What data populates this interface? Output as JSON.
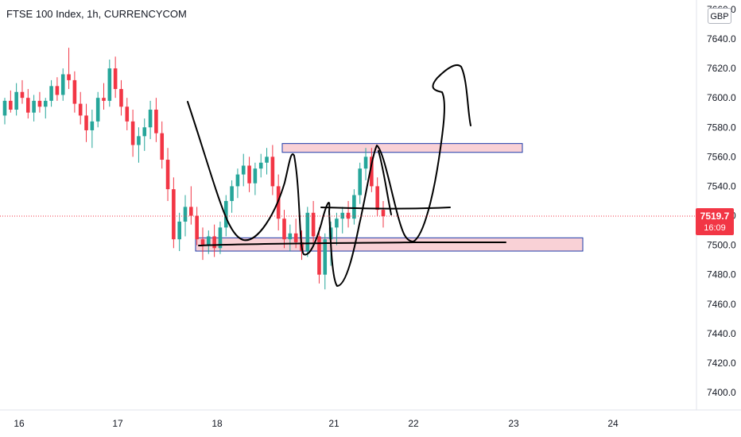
{
  "header": {
    "title": "FTSE 100 Index, 1h, CURRENCYCOM",
    "currency": "GBP"
  },
  "price_tag": {
    "price": "7519.7",
    "countdown": "16:09"
  },
  "colors": {
    "up": "#26a69a",
    "down": "#f23645",
    "drawing": "#000000",
    "zone_fill": "#f8c9cf",
    "zone_border": "#1c3aa9",
    "axis_text": "#131722",
    "current_line": "#f23645"
  },
  "chart_data": {
    "type": "candlestick",
    "title": "FTSE 100 Index, 1h, CURRENCYCOM",
    "y_axis": {
      "ticks": [
        "7640.0",
        "7620.0",
        "7600.0",
        "7580.0",
        "7560.0",
        "7540.0",
        "7520.0",
        "7500.0",
        "7480.0",
        "7460.0",
        "7440.0",
        "7420.0",
        "7400.0"
      ],
      "top_partial_tick": "7660.0",
      "range": [
        7388,
        7662
      ],
      "position": "right"
    },
    "x_axis": {
      "ticks": [
        "16",
        "17",
        "18",
        "21",
        "22",
        "23",
        "24"
      ]
    },
    "current_price": 7519.7,
    "current_price_line": "dotted",
    "candles": [
      [
        7588,
        7600,
        7582,
        7598
      ],
      [
        7598,
        7605,
        7590,
        7592
      ],
      [
        7592,
        7610,
        7588,
        7604
      ],
      [
        7604,
        7612,
        7596,
        7600
      ],
      [
        7600,
        7606,
        7586,
        7590
      ],
      [
        7590,
        7602,
        7584,
        7598
      ],
      [
        7598,
        7604,
        7590,
        7594
      ],
      [
        7594,
        7600,
        7586,
        7598
      ],
      [
        7598,
        7612,
        7594,
        7608
      ],
      [
        7608,
        7614,
        7598,
        7602
      ],
      [
        7602,
        7620,
        7598,
        7616
      ],
      [
        7616,
        7634,
        7606,
        7612
      ],
      [
        7612,
        7618,
        7590,
        7596
      ],
      [
        7596,
        7604,
        7582,
        7588
      ],
      [
        7588,
        7596,
        7570,
        7578
      ],
      [
        7578,
        7592,
        7566,
        7584
      ],
      [
        7584,
        7604,
        7580,
        7600
      ],
      [
        7600,
        7610,
        7592,
        7598
      ],
      [
        7598,
        7626,
        7594,
        7620
      ],
      [
        7620,
        7628,
        7600,
        7606
      ],
      [
        7606,
        7612,
        7588,
        7594
      ],
      [
        7594,
        7600,
        7578,
        7584
      ],
      [
        7584,
        7592,
        7560,
        7568
      ],
      [
        7568,
        7580,
        7556,
        7574
      ],
      [
        7574,
        7586,
        7564,
        7580
      ],
      [
        7580,
        7598,
        7572,
        7592
      ],
      [
        7592,
        7600,
        7570,
        7576
      ],
      [
        7576,
        7584,
        7552,
        7558
      ],
      [
        7558,
        7566,
        7530,
        7538
      ],
      [
        7538,
        7546,
        7498,
        7504
      ],
      [
        7504,
        7522,
        7496,
        7516
      ],
      [
        7516,
        7534,
        7506,
        7526
      ],
      [
        7526,
        7540,
        7514,
        7520
      ],
      [
        7520,
        7526,
        7500,
        7504
      ],
      [
        7504,
        7512,
        7490,
        7500
      ],
      [
        7500,
        7510,
        7494,
        7506
      ],
      [
        7506,
        7514,
        7492,
        7498
      ],
      [
        7498,
        7516,
        7494,
        7512
      ],
      [
        7512,
        7534,
        7506,
        7530
      ],
      [
        7530,
        7544,
        7522,
        7540
      ],
      [
        7540,
        7552,
        7532,
        7548
      ],
      [
        7548,
        7562,
        7540,
        7554
      ],
      [
        7554,
        7560,
        7536,
        7542
      ],
      [
        7542,
        7556,
        7534,
        7552
      ],
      [
        7552,
        7562,
        7546,
        7556
      ],
      [
        7556,
        7566,
        7548,
        7560
      ],
      [
        7560,
        7568,
        7534,
        7540
      ],
      [
        7540,
        7548,
        7510,
        7518
      ],
      [
        7518,
        7524,
        7498,
        7504
      ],
      [
        7504,
        7514,
        7496,
        7508
      ],
      [
        7508,
        7518,
        7498,
        7502
      ],
      [
        7502,
        7510,
        7490,
        7496
      ],
      [
        7496,
        7526,
        7492,
        7522
      ],
      [
        7522,
        7530,
        7500,
        7506
      ],
      [
        7506,
        7512,
        7474,
        7480
      ],
      [
        7480,
        7508,
        7470,
        7504
      ],
      [
        7504,
        7516,
        7486,
        7512
      ],
      [
        7512,
        7522,
        7500,
        7518
      ],
      [
        7518,
        7526,
        7508,
        7522
      ],
      [
        7522,
        7530,
        7512,
        7518
      ],
      [
        7518,
        7538,
        7514,
        7534
      ],
      [
        7534,
        7556,
        7528,
        7552
      ],
      [
        7552,
        7566,
        7544,
        7560
      ],
      [
        7560,
        7566,
        7536,
        7540
      ],
      [
        7540,
        7546,
        7520,
        7524
      ],
      [
        7524,
        7530,
        7512,
        7519.7
      ]
    ],
    "zones": [
      {
        "from": 7563,
        "to": 7569
      },
      {
        "from": 7496,
        "to": 7505
      }
    ],
    "legend": "none",
    "grid": false
  }
}
